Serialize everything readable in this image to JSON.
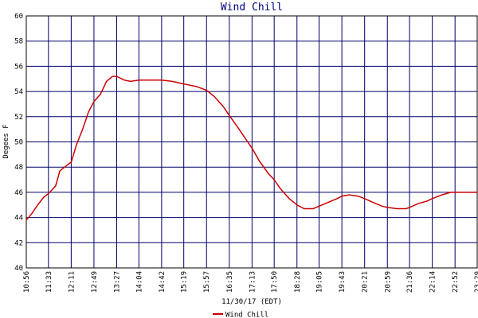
{
  "chart_data": {
    "type": "line",
    "title": "Wind Chill",
    "y_label": "Degees F",
    "x_label": "11/30/17 (EDT)",
    "x": [
      "10:56",
      "11:05",
      "11:15",
      "11:25",
      "11:33",
      "11:45",
      "11:52",
      "12:00",
      "12:11",
      "12:20",
      "12:30",
      "12:40",
      "12:49",
      "13:00",
      "13:10",
      "13:20",
      "13:27",
      "13:40",
      "13:50",
      "14:04",
      "14:20",
      "14:42",
      "15:00",
      "15:19",
      "15:40",
      "15:57",
      "16:10",
      "16:25",
      "16:35",
      "16:50",
      "17:00",
      "17:13",
      "17:25",
      "17:40",
      "17:50",
      "18:00",
      "18:15",
      "18:28",
      "18:40",
      "18:55",
      "19:05",
      "19:20",
      "19:35",
      "19:43",
      "19:55",
      "20:10",
      "20:21",
      "20:35",
      "20:50",
      "20:59",
      "21:15",
      "21:30",
      "21:36",
      "21:50",
      "22:05",
      "22:14",
      "22:30",
      "22:45",
      "22:52",
      "23:10",
      "23:29"
    ],
    "series": [
      {
        "name": "Wind Chill",
        "color": "#cc0000",
        "values": [
          43.8,
          44.3,
          45.0,
          45.6,
          45.9,
          46.5,
          47.7,
          48.0,
          48.4,
          49.8,
          51.0,
          52.4,
          53.2,
          53.8,
          54.8,
          55.2,
          55.2,
          54.9,
          54.8,
          54.9,
          54.9,
          54.9,
          54.8,
          54.6,
          54.4,
          54.1,
          53.6,
          52.8,
          52.1,
          51.1,
          50.4,
          49.5,
          48.5,
          47.5,
          47.0,
          46.3,
          45.5,
          45.0,
          44.7,
          44.7,
          44.9,
          45.2,
          45.5,
          45.7,
          45.8,
          45.7,
          45.5,
          45.2,
          44.9,
          44.8,
          44.7,
          44.7,
          44.8,
          45.1,
          45.3,
          45.5,
          45.8,
          46.0,
          46.0,
          46.0,
          46.0
        ]
      }
    ],
    "xlim": [
      "10:56",
      "23:29"
    ],
    "xticks": [
      "10:56",
      "11:33",
      "12:11",
      "12:49",
      "13:27",
      "14:04",
      "14:42",
      "15:19",
      "15:57",
      "16:35",
      "17:13",
      "17:50",
      "18:28",
      "19:05",
      "19:43",
      "20:21",
      "20:59",
      "21:36",
      "22:14",
      "22:52",
      "23:29"
    ],
    "ylim": [
      40,
      60
    ],
    "yticks": [
      40,
      42,
      44,
      46,
      48,
      50,
      52,
      54,
      56,
      58,
      60
    ],
    "grid": true
  }
}
